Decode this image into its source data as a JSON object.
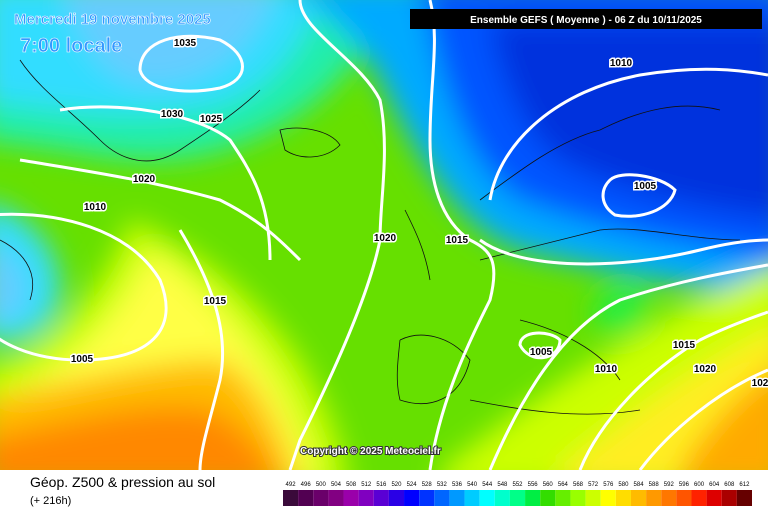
{
  "header": {
    "date": "Mercredi 19 novembre 2025",
    "time": "7:00 locale",
    "run": "Ensemble GEFS  ( Moyenne )  -  06 Z du 10/11/2025"
  },
  "isobar_labels": [
    "1035",
    "1030",
    "1025",
    "1020",
    "1010",
    "1015",
    "1005",
    "1010",
    "1005",
    "1020",
    "1015",
    "1005",
    "1010",
    "1015",
    "1020",
    "102"
  ],
  "copyright": "Copyright © 2025 Meteociel.fr",
  "footer": {
    "title": "Géop. Z500 & pression au sol",
    "lead": "(+ 216h)"
  },
  "legend": {
    "labels": [
      492,
      496,
      500,
      504,
      508,
      512,
      516,
      520,
      524,
      528,
      532,
      536,
      540,
      544,
      548,
      552,
      556,
      560,
      564,
      568,
      572,
      576,
      580,
      584,
      588,
      592,
      596,
      600,
      604,
      608,
      612
    ],
    "colors": [
      "#3a0a3a",
      "#520052",
      "#6a006a",
      "#820082",
      "#9a00aa",
      "#8000c0",
      "#5a00d4",
      "#2a00e6",
      "#0000ff",
      "#0033ff",
      "#0066ff",
      "#0099ff",
      "#00ccff",
      "#00ffff",
      "#00ffcc",
      "#00ff88",
      "#00ee44",
      "#33dd00",
      "#66ee00",
      "#99ff00",
      "#ccff00",
      "#ffff00",
      "#ffdd00",
      "#ffbb00",
      "#ff9900",
      "#ff7700",
      "#ff5500",
      "#ff2200",
      "#dd0000",
      "#aa0000",
      "#660000"
    ]
  }
}
